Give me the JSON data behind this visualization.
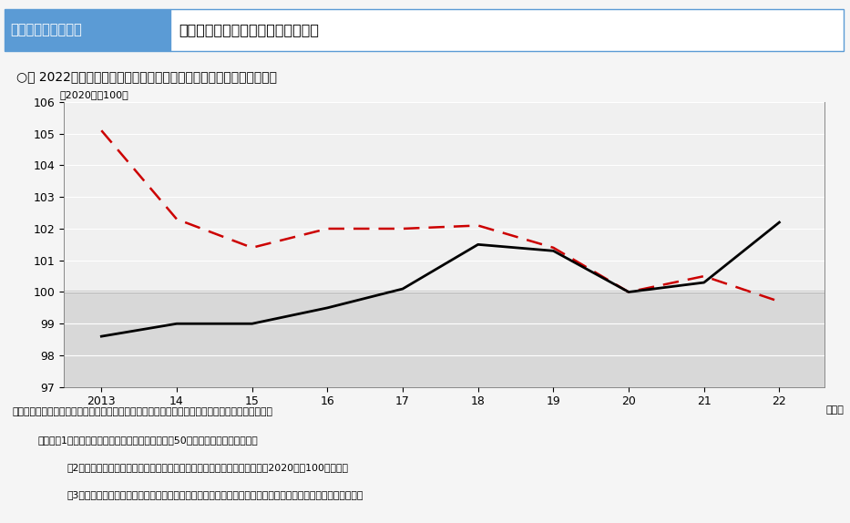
{
  "years": [
    2013,
    2014,
    2015,
    2016,
    2017,
    2018,
    2019,
    2020,
    2021,
    2022
  ],
  "nominal_wage": [
    98.6,
    99.0,
    99.0,
    99.5,
    100.1,
    101.5,
    101.3,
    100.0,
    100.3,
    102.2
  ],
  "real_wage": [
    105.1,
    102.3,
    101.4,
    102.0,
    102.0,
    102.1,
    101.4,
    100.0,
    100.5,
    99.7
  ],
  "nominal_color": "#000000",
  "real_color": "#cc0000",
  "title_box": "第１－（３）－９図",
  "title_text": "名目賃金指数と実質賃金指数の推移",
  "subtitle": "○　 2022年は物価の上昇を反映し、実質賃金が名目賃金を下回った。",
  "y_unit": "（2020年＝100）",
  "x_unit": "（年）",
  "nominal_label": "名目賃金指数",
  "real_label": "実質賃金指数",
  "ylim": [
    97,
    106
  ],
  "yticks": [
    97,
    98,
    99,
    100,
    101,
    102,
    103,
    104,
    105,
    106
  ],
  "xlabels": [
    "2013",
    "14",
    "15",
    "16",
    "17",
    "18",
    "19",
    "20",
    "21",
    "22"
  ],
  "source_text": "資料出所　厚生労働省「毎月勤労統計調査」をもとに厚生労働省政策統括官付政策統括室にて作成",
  "note1": "（注）　1）調査産業計、就業形態計、事業所規模50人以上の値を示している。",
  "note2": "　2）名目賃金指数は、就業形態計の現金給与総額に対応した指数である。2020年を100とする。",
  "note3": "　3）実質賃金指数は、名目賃金指数を消費者物価指数（持家の帰属家賃を除く総合）で除して算出している。",
  "header_bg": "#5b9bd5",
  "header_text_bg": "#ffffff",
  "plot_bg": "#f0f0f0",
  "shade_bg": "#d8d8d8",
  "fig_bg": "#f5f5f5"
}
